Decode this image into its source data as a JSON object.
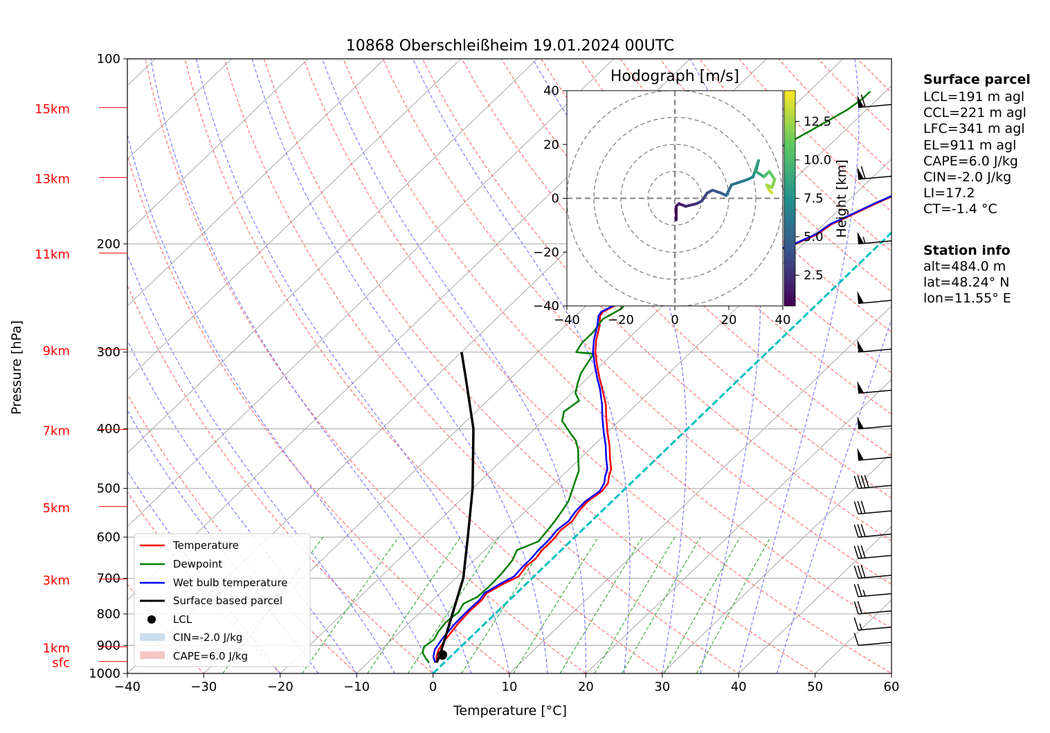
{
  "title": "10868 Oberschleißheim 19.01.2024 00UTC",
  "xlabel": "Temperature [°C]",
  "ylabel": "Pressure [hPa]",
  "colors": {
    "temperature": "#ff0000",
    "dewpoint": "#008000",
    "wetbulb": "#0000ff",
    "parcel": "#000000",
    "isotherm0": "#00bfbf",
    "height_labels": "#ff0000"
  },
  "chart_data": [
    {
      "type": "line",
      "subtype": "skew-T log-p diagram",
      "xlim": [
        -40,
        60
      ],
      "ylim": [
        1000,
        100
      ],
      "y_scale": "log (inverted)",
      "x_ticks": [
        -40,
        -30,
        -20,
        -10,
        0,
        10,
        20,
        30,
        40,
        50,
        60
      ],
      "y_ticks": [
        100,
        200,
        300,
        400,
        500,
        600,
        700,
        800,
        900,
        1000
      ],
      "grid": true,
      "height_labels": [
        {
          "label": "15km",
          "p": 120
        },
        {
          "label": "13km",
          "p": 156
        },
        {
          "label": "11km",
          "p": 207
        },
        {
          "label": "9km",
          "p": 297
        },
        {
          "label": "7km",
          "p": 401
        },
        {
          "label": "5km",
          "p": 535
        },
        {
          "label": "3km",
          "p": 702
        },
        {
          "label": "1km",
          "p": 905
        },
        {
          "label": "sfc",
          "p": 956
        }
      ],
      "series": [
        {
          "name": "Temperature",
          "points": [
            [
              -1.0,
              960
            ],
            [
              -1.8,
              940
            ],
            [
              -2.5,
              915
            ],
            [
              -3.0,
              880
            ],
            [
              -3.5,
              830
            ],
            [
              -3.7,
              790
            ],
            [
              -3.6,
              760
            ],
            [
              -3.9,
              740
            ],
            [
              -3.0,
              715
            ],
            [
              -2.0,
              695
            ],
            [
              -2.4,
              670
            ],
            [
              -2.2,
              650
            ],
            [
              -2.5,
              630
            ],
            [
              -2.5,
              605
            ],
            [
              -2.8,
              585
            ],
            [
              -2.5,
              565
            ],
            [
              -3.0,
              545
            ],
            [
              -3.2,
              525
            ],
            [
              -2.7,
              505
            ],
            [
              -3.0,
              490
            ],
            [
              -3.8,
              478
            ],
            [
              -4.5,
              465
            ],
            [
              -6.0,
              448
            ],
            [
              -8.0,
              425
            ],
            [
              -10.0,
              405
            ],
            [
              -12.0,
              385
            ],
            [
              -14.0,
              365
            ],
            [
              -16.5,
              345
            ],
            [
              -18.5,
              330
            ],
            [
              -20.5,
              315
            ],
            [
              -22.5,
              300
            ],
            [
              -24.0,
              287
            ],
            [
              -25.5,
              272
            ],
            [
              -26.8,
              262
            ],
            [
              -27.0,
              258
            ],
            [
              -26.0,
              250
            ],
            [
              -24.5,
              245
            ],
            [
              -22.5,
              238
            ],
            [
              -20.5,
              232
            ],
            [
              -19.0,
              226
            ],
            [
              -16.5,
              219
            ],
            [
              -15.5,
              213
            ],
            [
              -13.0,
              207
            ],
            [
              -11.0,
              200
            ],
            [
              -9.5,
              193
            ],
            [
              -9.0,
              186
            ],
            [
              -7.5,
              179
            ],
            [
              -6.0,
              172
            ],
            [
              -4.5,
              166
            ],
            [
              -3.0,
              160
            ],
            [
              -1.5,
              153
            ],
            [
              0.0,
              147
            ],
            [
              1.5,
              141
            ],
            [
              3.5,
              134
            ],
            [
              4.5,
              128
            ],
            [
              6.5,
              121
            ],
            [
              6.2,
              114
            ],
            [
              6.0,
              110
            ]
          ]
        },
        {
          "name": "Dewpoint",
          "points": [
            [
              -2.0,
              960
            ],
            [
              -3.0,
              945
            ],
            [
              -4.2,
              925
            ],
            [
              -4.8,
              905
            ],
            [
              -4.5,
              880
            ],
            [
              -5.0,
              855
            ],
            [
              -5.3,
              825
            ],
            [
              -5.0,
              795
            ],
            [
              -5.5,
              770
            ],
            [
              -4.6,
              750
            ],
            [
              -4.5,
              720
            ],
            [
              -4.6,
              690
            ],
            [
              -5.0,
              655
            ],
            [
              -5.8,
              630
            ],
            [
              -4.2,
              610
            ],
            [
              -4.5,
              585
            ],
            [
              -4.8,
              565
            ],
            [
              -5.2,
              545
            ],
            [
              -5.7,
              525
            ],
            [
              -6.5,
              508
            ],
            [
              -7.5,
              488
            ],
            [
              -8.5,
              468
            ],
            [
              -10.0,
              450
            ],
            [
              -11.5,
              432
            ],
            [
              -13.0,
              418
            ],
            [
              -14.5,
              408
            ],
            [
              -16.0,
              398
            ],
            [
              -17.5,
              388
            ],
            [
              -18.5,
              375
            ],
            [
              -18.0,
              360
            ],
            [
              -19.5,
              350
            ],
            [
              -20.5,
              338
            ],
            [
              -21.5,
              325
            ],
            [
              -22.0,
              313
            ],
            [
              -22.5,
              302
            ],
            [
              -25.0,
              300
            ],
            [
              -25.5,
              290
            ],
            [
              -25.5,
              278
            ],
            [
              -26.0,
              265
            ],
            [
              -25.0,
              255
            ],
            [
              -25.3,
              245
            ],
            [
              -27.0,
              236
            ],
            [
              -31.0,
              232
            ],
            [
              -33.5,
              228
            ],
            [
              -33.0,
              222
            ],
            [
              -33.5,
              215
            ],
            [
              -32.5,
              208
            ],
            [
              -32.5,
              200
            ],
            [
              -32.2,
              193
            ],
            [
              -32.0,
              186
            ],
            [
              -31.5,
              178
            ],
            [
              -31.0,
              170
            ],
            [
              -30.5,
              163
            ],
            [
              -29.0,
              157
            ],
            [
              -28.0,
              152
            ],
            [
              -27.5,
              147
            ],
            [
              -26.5,
              141
            ],
            [
              -25.5,
              136
            ],
            [
              -24.5,
              131
            ],
            [
              -23.5,
              126
            ],
            [
              -22.5,
              121
            ],
            [
              -22.0,
              116
            ],
            [
              -22.0,
              113
            ]
          ]
        },
        {
          "name": "Wet bulb temperature",
          "points": [
            [
              -1.2,
              960
            ],
            [
              -2.2,
              940
            ],
            [
              -3.0,
              915
            ],
            [
              -3.5,
              880
            ],
            [
              -3.9,
              830
            ],
            [
              -4.0,
              790
            ],
            [
              -3.9,
              760
            ],
            [
              -4.2,
              740
            ],
            [
              -3.4,
              715
            ],
            [
              -2.6,
              695
            ],
            [
              -2.8,
              670
            ],
            [
              -2.8,
              650
            ],
            [
              -3.0,
              630
            ],
            [
              -3.0,
              605
            ],
            [
              -3.3,
              585
            ],
            [
              -3.0,
              565
            ],
            [
              -3.4,
              545
            ],
            [
              -3.5,
              525
            ],
            [
              -3.0,
              505
            ],
            [
              -3.5,
              490
            ],
            [
              -4.3,
              478
            ],
            [
              -5.0,
              465
            ],
            [
              -6.5,
              448
            ],
            [
              -8.5,
              425
            ],
            [
              -10.5,
              405
            ],
            [
              -12.5,
              385
            ],
            [
              -14.5,
              365
            ],
            [
              -16.8,
              345
            ],
            [
              -18.8,
              330
            ],
            [
              -20.8,
              315
            ],
            [
              -22.8,
              300
            ],
            [
              -24.3,
              287
            ],
            [
              -25.8,
              272
            ],
            [
              -27.0,
              262
            ],
            [
              -27.2,
              258
            ],
            [
              -26.2,
              250
            ],
            [
              -24.7,
              245
            ],
            [
              -22.7,
              238
            ],
            [
              -20.7,
              232
            ],
            [
              -19.2,
              226
            ],
            [
              -16.7,
              219
            ],
            [
              -15.7,
              213
            ],
            [
              -13.2,
              207
            ],
            [
              -11.2,
              200
            ],
            [
              -9.7,
              193
            ],
            [
              -9.2,
              186
            ],
            [
              -7.7,
              179
            ],
            [
              -6.2,
              172
            ],
            [
              -4.7,
              166
            ],
            [
              -3.2,
              160
            ],
            [
              -1.7,
              153
            ],
            [
              -0.2,
              147
            ],
            [
              1.3,
              141
            ],
            [
              3.3,
              134
            ],
            [
              4.3,
              128
            ],
            [
              6.1,
              121
            ],
            [
              5.8,
              114
            ],
            [
              5.6,
              110
            ]
          ]
        },
        {
          "name": "Surface based parcel",
          "points": [
            [
              -1.0,
              960
            ],
            [
              -1.7,
              930
            ],
            [
              -4.0,
              850
            ],
            [
              -9.0,
              700
            ],
            [
              -14.0,
              600
            ],
            [
              -20.0,
              500
            ],
            [
              -28.0,
              400
            ],
            [
              -36.0,
              330
            ],
            [
              -40.0,
              300
            ]
          ]
        }
      ],
      "lcl": {
        "label": "LCL",
        "t": -1.3,
        "p": 933
      },
      "legend": {
        "location": "lower-left",
        "entries": [
          "Temperature",
          "Dewpoint",
          "Wet bulb temperature",
          "Surface based parcel",
          "LCL",
          "CIN=-2.0 J/kg",
          "CAPE=6.0 J/kg"
        ]
      },
      "wind_barbs": [
        {
          "p": 120,
          "kt": 60
        },
        {
          "p": 157,
          "kt": 60
        },
        {
          "p": 200,
          "kt": 55
        },
        {
          "p": 250,
          "kt": 50
        },
        {
          "p": 300,
          "kt": 50
        },
        {
          "p": 350,
          "kt": 50
        },
        {
          "p": 400,
          "kt": 50
        },
        {
          "p": 450,
          "kt": 50
        },
        {
          "p": 500,
          "kt": 40
        },
        {
          "p": 550,
          "kt": 30
        },
        {
          "p": 600,
          "kt": 30
        },
        {
          "p": 650,
          "kt": 30
        },
        {
          "p": 700,
          "kt": 30
        },
        {
          "p": 750,
          "kt": 25
        },
        {
          "p": 800,
          "kt": 20
        },
        {
          "p": 850,
          "kt": 15
        },
        {
          "p": 900,
          "kt": 10
        }
      ]
    },
    {
      "type": "line",
      "subtype": "hodograph",
      "title": "Hodograph [m/s]",
      "xlim": [
        -40,
        40
      ],
      "ylim": [
        -40,
        40
      ],
      "x_ticks": [
        -40,
        -20,
        0,
        20,
        40
      ],
      "y_ticks": [
        -40,
        -20,
        0,
        20,
        40
      ],
      "rings": [
        10,
        20,
        30,
        40
      ],
      "colorbar": {
        "label": "Height [km]",
        "ticks": [
          2.5,
          5.0,
          7.5,
          10.0,
          12.5
        ],
        "range": [
          0.5,
          14.5
        ]
      },
      "points": [
        [
          0.5,
          -8,
          0.5
        ],
        [
          0.5,
          -3,
          1.0
        ],
        [
          1.5,
          -2,
          1.5
        ],
        [
          4,
          -3,
          2.0
        ],
        [
          8,
          -2,
          2.5
        ],
        [
          10,
          -1,
          3.0
        ],
        [
          12,
          2,
          3.5
        ],
        [
          14,
          3,
          4.0
        ],
        [
          17,
          2,
          4.5
        ],
        [
          19,
          1,
          5.0
        ],
        [
          21,
          5,
          5.5
        ],
        [
          24,
          6,
          6.0
        ],
        [
          27,
          7,
          6.5
        ],
        [
          29,
          8,
          7.0
        ],
        [
          30,
          11,
          7.5
        ],
        [
          31,
          14,
          8.0
        ],
        [
          30,
          10,
          8.5
        ],
        [
          33,
          8,
          9.5
        ],
        [
          35,
          10,
          10.5
        ],
        [
          37,
          7,
          11.5
        ],
        [
          36,
          4,
          12.0
        ],
        [
          34,
          5,
          12.5
        ],
        [
          35,
          3,
          13.0
        ],
        [
          36,
          2,
          14.0
        ]
      ]
    }
  ],
  "side_panel": {
    "parcel_title": "Surface parcel",
    "parcel_lines": [
      "LCL=191 m agl",
      "CCL=221 m agl",
      "LFC=341 m agl",
      "EL=911 m agl",
      "CAPE=6.0 J/kg",
      "CIN=-2.0 J/kg",
      "LI=17.2",
      "CT=-1.4 °C"
    ],
    "station_title": "Station info",
    "station_lines": [
      "alt=484.0 m",
      "lat=48.24° N",
      "lon=11.55° E"
    ]
  }
}
